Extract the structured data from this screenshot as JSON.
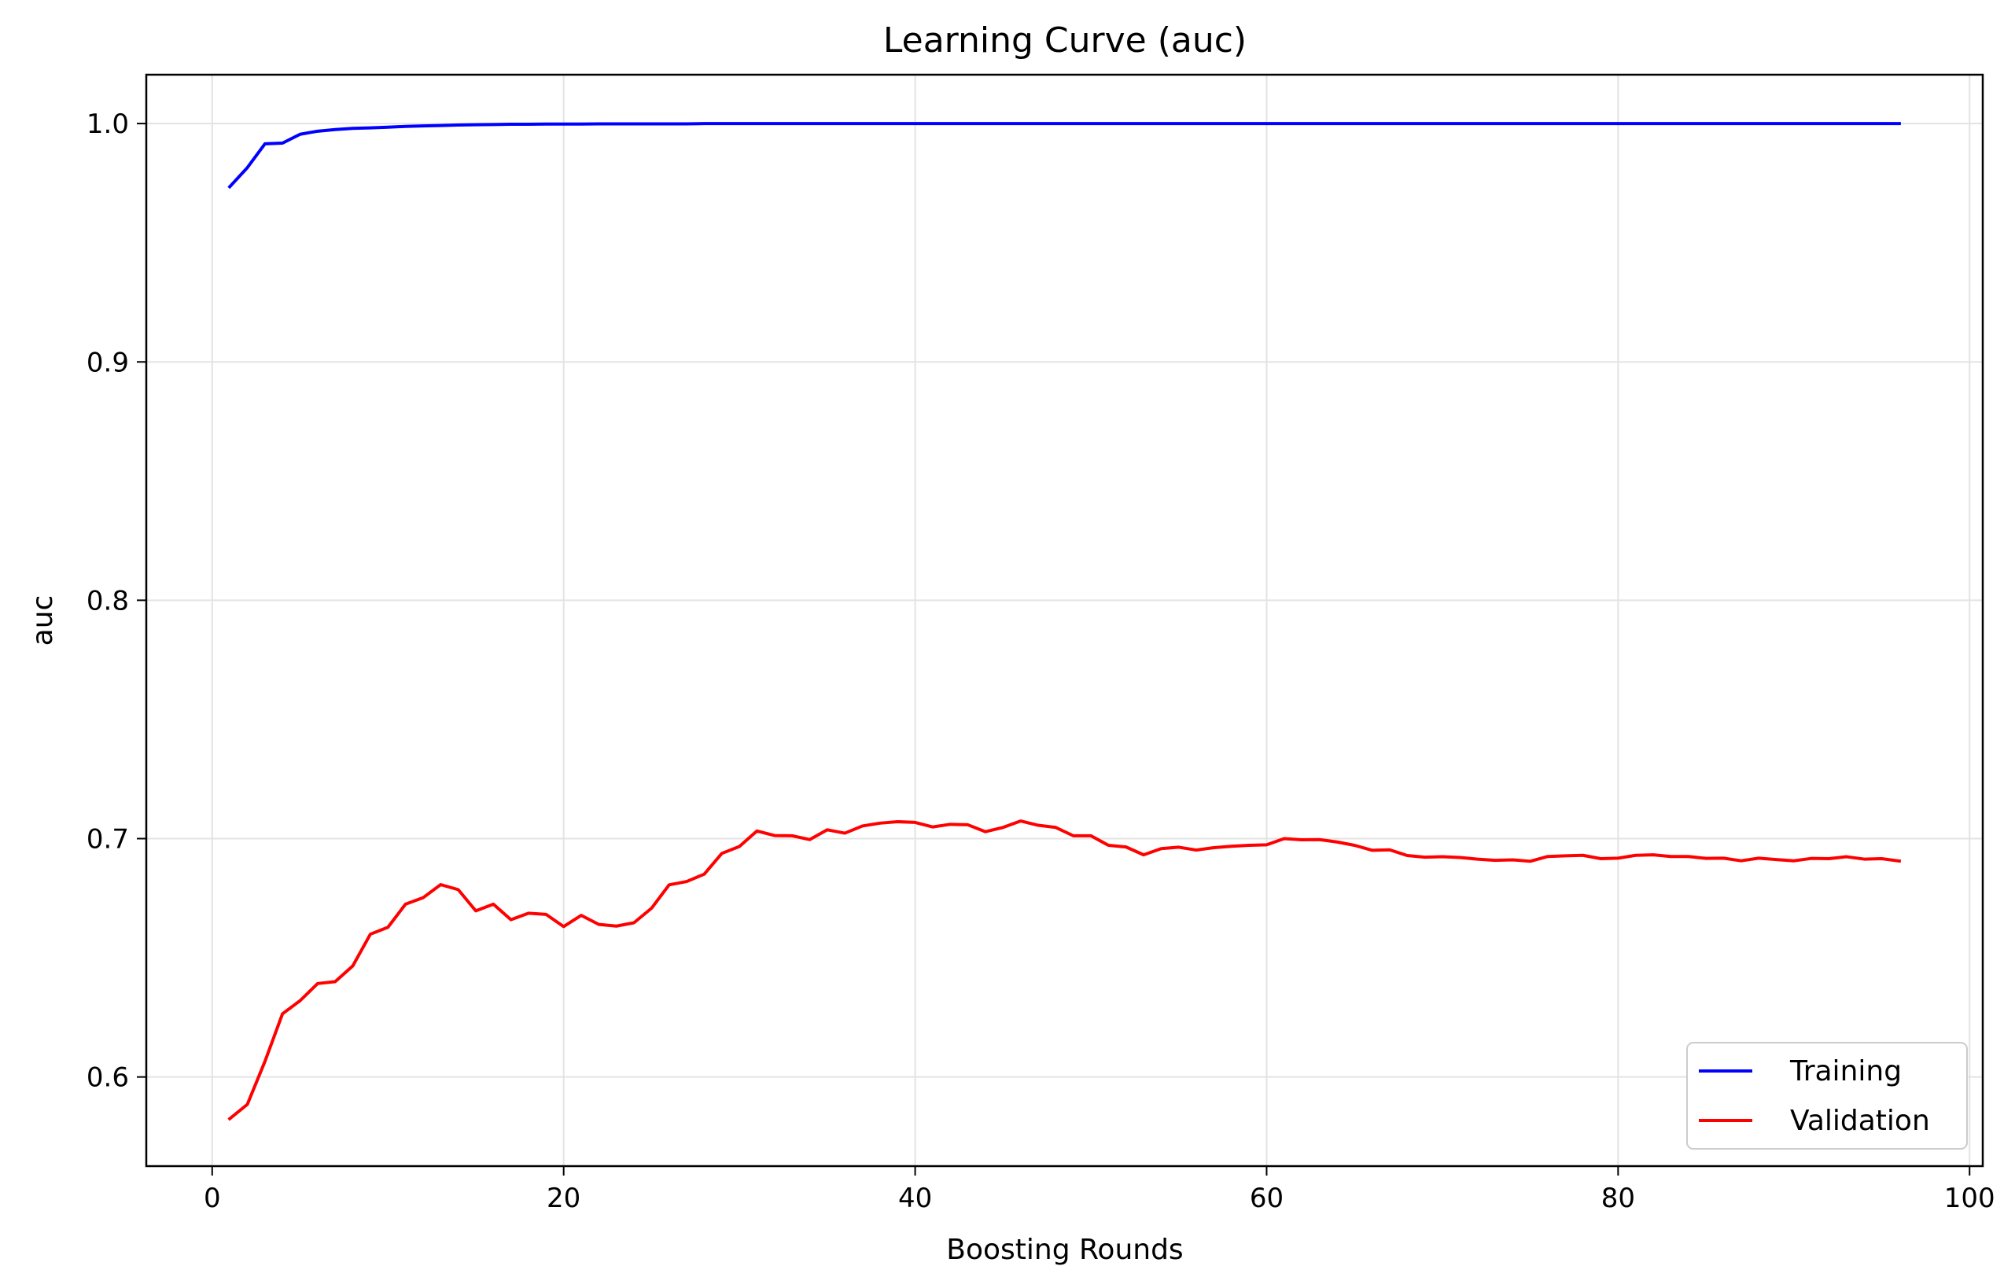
{
  "chart_data": {
    "type": "line",
    "title": "Learning Curve (auc)",
    "xlabel": "Boosting Rounds",
    "ylabel": "auc",
    "xlim": [
      -3.75,
      100.75
    ],
    "ylim": [
      0.5626,
      1.0205
    ],
    "xticks": [
      0,
      20,
      40,
      60,
      80,
      100
    ],
    "yticks": [
      0.6,
      0.7,
      0.8,
      0.9,
      1.0
    ],
    "xtick_labels": [
      "0",
      "20",
      "40",
      "60",
      "80",
      "100"
    ],
    "ytick_labels": [
      "0.6",
      "0.7",
      "0.8",
      "0.9",
      "1.0"
    ],
    "grid": true,
    "legend_position": "lower-right",
    "x": [
      1,
      2,
      3,
      4,
      5,
      6,
      7,
      8,
      9,
      10,
      11,
      12,
      13,
      14,
      15,
      16,
      17,
      18,
      19,
      20,
      21,
      22,
      23,
      24,
      25,
      26,
      27,
      28,
      29,
      30,
      31,
      32,
      33,
      34,
      35,
      36,
      37,
      38,
      39,
      40,
      41,
      42,
      43,
      44,
      45,
      46,
      47,
      48,
      49,
      50,
      51,
      52,
      53,
      54,
      55,
      56,
      57,
      58,
      59,
      60,
      61,
      62,
      63,
      64,
      65,
      66,
      67,
      68,
      69,
      70,
      71,
      72,
      73,
      74,
      75,
      76,
      77,
      78,
      79,
      80,
      81,
      82,
      83,
      84,
      85,
      86,
      87,
      88,
      89,
      90,
      91,
      92,
      93,
      94,
      95,
      96
    ],
    "series": [
      {
        "name": "Training",
        "color": "#0000ff",
        "values": [
          0.9735,
          0.9815,
          0.9915,
          0.9918,
          0.9955,
          0.9968,
          0.9975,
          0.998,
          0.9982,
          0.9985,
          0.9988,
          0.999,
          0.9992,
          0.9994,
          0.9995,
          0.9996,
          0.9997,
          0.9997,
          0.9998,
          0.9998,
          0.9998,
          0.9999,
          0.9999,
          0.9999,
          0.9999,
          0.9999,
          0.9999,
          1.0,
          1.0,
          1.0,
          1.0,
          1.0,
          1.0,
          1.0,
          1.0,
          1.0,
          1.0,
          1.0,
          1.0,
          1.0,
          1.0,
          1.0,
          1.0,
          1.0,
          1.0,
          1.0,
          1.0,
          1.0,
          1.0,
          1.0,
          1.0,
          1.0,
          1.0,
          1.0,
          1.0,
          1.0,
          1.0,
          1.0,
          1.0,
          1.0,
          1.0,
          1.0,
          1.0,
          1.0,
          1.0,
          1.0,
          1.0,
          1.0,
          1.0,
          1.0,
          1.0,
          1.0,
          1.0,
          1.0,
          1.0,
          1.0,
          1.0,
          1.0,
          1.0,
          1.0,
          1.0,
          1.0,
          1.0,
          1.0,
          1.0,
          1.0,
          1.0,
          1.0,
          1.0,
          1.0,
          1.0,
          1.0,
          1.0,
          1.0,
          1.0,
          1.0
        ]
      },
      {
        "name": "Validation",
        "color": "#ff0000",
        "values": [
          0.5825,
          0.5885,
          0.6065,
          0.6265,
          0.632,
          0.6392,
          0.64,
          0.6466,
          0.6599,
          0.6628,
          0.6725,
          0.6752,
          0.6807,
          0.6786,
          0.6697,
          0.6725,
          0.666,
          0.6687,
          0.6682,
          0.6631,
          0.6678,
          0.664,
          0.6633,
          0.6647,
          0.6708,
          0.6806,
          0.682,
          0.6851,
          0.6938,
          0.6967,
          0.7032,
          0.7013,
          0.7012,
          0.6996,
          0.7037,
          0.7023,
          0.7053,
          0.7065,
          0.7071,
          0.7068,
          0.7049,
          0.706,
          0.7058,
          0.7029,
          0.7047,
          0.7074,
          0.7056,
          0.7047,
          0.7012,
          0.7012,
          0.6972,
          0.6965,
          0.6932,
          0.6958,
          0.6964,
          0.6952,
          0.6962,
          0.6968,
          0.6972,
          0.6974,
          0.7,
          0.6995,
          0.6996,
          0.6986,
          0.6972,
          0.6951,
          0.6953,
          0.6929,
          0.6922,
          0.6924,
          0.6921,
          0.6914,
          0.6909,
          0.6911,
          0.6905,
          0.6925,
          0.6928,
          0.693,
          0.6916,
          0.6918,
          0.693,
          0.6932,
          0.6925,
          0.6925,
          0.6917,
          0.6918,
          0.6907,
          0.6918,
          0.6912,
          0.6907,
          0.6917,
          0.6916,
          0.6924,
          0.6914,
          0.6916,
          0.6906
        ]
      }
    ]
  }
}
